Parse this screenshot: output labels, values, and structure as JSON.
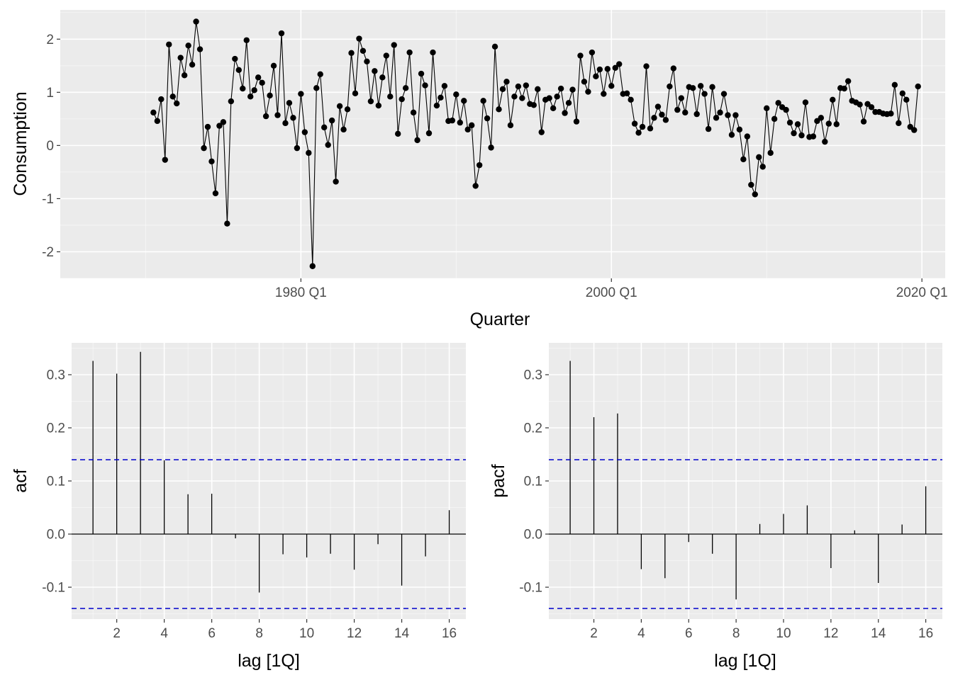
{
  "colors": {
    "panel_bg": "#ebebeb",
    "grid_major": "#ffffff",
    "ink": "#000000",
    "tick_text": "#4d4d4d",
    "conf_band": "#0000cc"
  },
  "chart_data": [
    {
      "type": "line",
      "name": "timeseries",
      "xlabel": "Quarter",
      "ylabel": "Consumption",
      "x_start": 1970.5,
      "x_step": 0.25,
      "xlim": [
        1964.5,
        2021.5
      ],
      "ylim": [
        -2.5,
        2.55
      ],
      "xticks": [
        {
          "value": 1980,
          "label": "1980 Q1"
        },
        {
          "value": 2000,
          "label": "2000 Q1"
        },
        {
          "value": 2020,
          "label": "2020 Q1"
        }
      ],
      "yticks": [
        {
          "value": -2,
          "label": "-2"
        },
        {
          "value": -1,
          "label": "-1"
        },
        {
          "value": 0,
          "label": "0"
        },
        {
          "value": 1,
          "label": "1"
        },
        {
          "value": 2,
          "label": "2"
        }
      ],
      "values": [
        0.62,
        0.46,
        0.87,
        -0.27,
        1.9,
        0.92,
        0.79,
        1.65,
        1.32,
        1.88,
        1.52,
        2.33,
        1.81,
        -0.05,
        0.35,
        -0.3,
        -0.9,
        0.37,
        0.44,
        -1.47,
        0.83,
        1.63,
        1.42,
        1.07,
        1.98,
        0.92,
        1.04,
        1.28,
        1.18,
        0.55,
        0.94,
        1.5,
        0.57,
        2.11,
        0.42,
        0.8,
        0.52,
        -0.05,
        0.97,
        0.25,
        -0.14,
        -2.27,
        1.08,
        1.34,
        0.34,
        0.01,
        0.47,
        -0.68,
        0.74,
        0.3,
        0.68,
        1.74,
        0.98,
        2.01,
        1.78,
        1.58,
        0.83,
        1.4,
        0.75,
        1.28,
        1.69,
        0.92,
        1.89,
        0.22,
        0.87,
        1.08,
        1.75,
        0.62,
        0.1,
        1.35,
        1.13,
        0.23,
        1.75,
        0.75,
        0.9,
        1.12,
        0.46,
        0.47,
        0.96,
        0.43,
        0.84,
        0.3,
        0.38,
        -0.76,
        -0.37,
        0.84,
        0.51,
        -0.04,
        1.86,
        0.68,
        1.06,
        1.2,
        0.38,
        0.92,
        1.11,
        0.89,
        1.13,
        0.78,
        0.76,
        1.06,
        0.25,
        0.86,
        0.89,
        0.7,
        0.92,
        1.07,
        0.61,
        0.8,
        1.05,
        0.45,
        1.69,
        1.2,
        1.01,
        1.75,
        1.3,
        1.43,
        0.97,
        1.44,
        1.12,
        1.46,
        1.53,
        0.97,
        0.98,
        0.86,
        0.41,
        0.24,
        0.35,
        1.49,
        0.32,
        0.52,
        0.73,
        0.58,
        0.48,
        1.11,
        1.45,
        0.67,
        0.89,
        0.62,
        1.1,
        1.08,
        0.59,
        1.12,
        0.97,
        0.31,
        1.1,
        0.52,
        0.62,
        0.97,
        0.57,
        0.2,
        0.57,
        0.3,
        -0.26,
        0.17,
        -0.74,
        -0.92,
        -0.22,
        -0.4,
        0.7,
        -0.14,
        0.5,
        0.8,
        0.72,
        0.67,
        0.43,
        0.23,
        0.4,
        0.19,
        0.81,
        0.16,
        0.17,
        0.46,
        0.52,
        0.07,
        0.41,
        0.86,
        0.4,
        1.08,
        1.07,
        1.21,
        0.84,
        0.81,
        0.77,
        0.45,
        0.78,
        0.72,
        0.63,
        0.63,
        0.6,
        0.59,
        0.6,
        1.14,
        0.42,
        0.98,
        0.86,
        0.35,
        0.29,
        1.11
      ]
    },
    {
      "type": "bar",
      "name": "acf",
      "xlabel": "lag [1Q]",
      "ylabel": "acf",
      "xlim": [
        0.1,
        16.7
      ],
      "ylim": [
        -0.16,
        0.36
      ],
      "lags": [
        1,
        2,
        3,
        4,
        5,
        6,
        7,
        8,
        9,
        10,
        11,
        12,
        13,
        14,
        15,
        16
      ],
      "values": [
        0.326,
        0.302,
        0.343,
        0.139,
        0.075,
        0.076,
        -0.008,
        -0.11,
        -0.038,
        -0.044,
        -0.037,
        -0.067,
        -0.019,
        -0.097,
        -0.042,
        0.045
      ],
      "conf_limit": 0.14,
      "xticks": [
        {
          "value": 2,
          "label": "2"
        },
        {
          "value": 4,
          "label": "4"
        },
        {
          "value": 6,
          "label": "6"
        },
        {
          "value": 8,
          "label": "8"
        },
        {
          "value": 10,
          "label": "10"
        },
        {
          "value": 12,
          "label": "12"
        },
        {
          "value": 14,
          "label": "14"
        },
        {
          "value": 16,
          "label": "16"
        }
      ],
      "yticks": [
        {
          "value": -0.1,
          "label": "-0.1"
        },
        {
          "value": 0.0,
          "label": "0.0"
        },
        {
          "value": 0.1,
          "label": "0.1"
        },
        {
          "value": 0.2,
          "label": "0.2"
        },
        {
          "value": 0.3,
          "label": "0.3"
        }
      ]
    },
    {
      "type": "bar",
      "name": "pacf",
      "xlabel": "lag [1Q]",
      "ylabel": "pacf",
      "xlim": [
        0.1,
        16.7
      ],
      "ylim": [
        -0.16,
        0.36
      ],
      "lags": [
        1,
        2,
        3,
        4,
        5,
        6,
        7,
        8,
        9,
        10,
        11,
        12,
        13,
        14,
        15,
        16
      ],
      "values": [
        0.326,
        0.22,
        0.227,
        -0.066,
        -0.083,
        -0.015,
        -0.037,
        -0.123,
        0.019,
        0.038,
        0.054,
        -0.064,
        0.007,
        -0.092,
        0.018,
        0.09
      ],
      "conf_limit": 0.14,
      "xticks": [
        {
          "value": 2,
          "label": "2"
        },
        {
          "value": 4,
          "label": "4"
        },
        {
          "value": 6,
          "label": "6"
        },
        {
          "value": 8,
          "label": "8"
        },
        {
          "value": 10,
          "label": "10"
        },
        {
          "value": 12,
          "label": "12"
        },
        {
          "value": 14,
          "label": "14"
        },
        {
          "value": 16,
          "label": "16"
        }
      ],
      "yticks": [
        {
          "value": -0.1,
          "label": "-0.1"
        },
        {
          "value": 0.0,
          "label": "0.0"
        },
        {
          "value": 0.1,
          "label": "0.1"
        },
        {
          "value": 0.2,
          "label": "0.2"
        },
        {
          "value": 0.3,
          "label": "0.3"
        }
      ]
    }
  ]
}
